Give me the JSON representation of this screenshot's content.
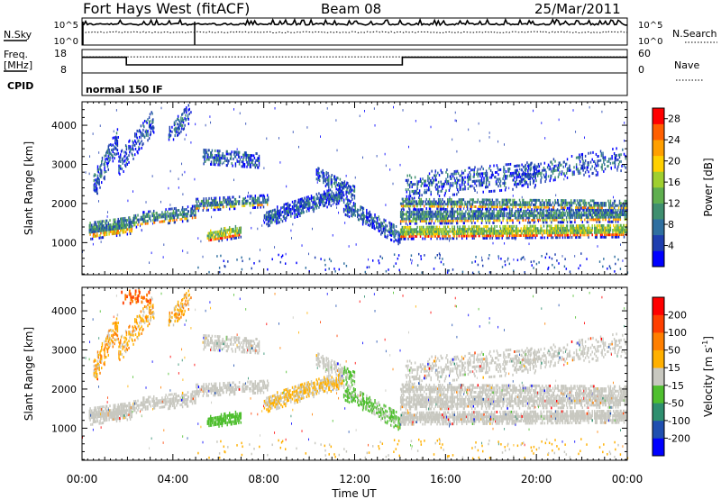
{
  "header": {
    "title": "Fort Hays West (fitACF)",
    "beam": "Beam 08",
    "date": "25/Mar/2011"
  },
  "chart_data": [
    {
      "type": "line",
      "name": "nsky-nsearch-panel",
      "left_label": "N.Sky",
      "right_label": "N.Search",
      "left_ticks": [
        "10^5",
        "10^0"
      ],
      "right_ticks": [
        "10^5",
        "10^0"
      ],
      "x_range_hours": [
        0,
        24
      ],
      "events_hours": [
        0.05,
        5.0
      ],
      "nsky_level": 0.85,
      "nsearch_level": 0.5
    },
    {
      "type": "line",
      "name": "freq-nave-panel",
      "left_label": "Freq.",
      "left_unit": "[MHz]",
      "right_label": "Nave",
      "left_ticks": [
        18,
        8
      ],
      "right_ticks": [
        60,
        0
      ],
      "freq_ylim": [
        8,
        18
      ],
      "x_range_hours": [
        0,
        24
      ],
      "freq_steps": [
        {
          "start": 0.0,
          "end": 1.95,
          "value": 15.0
        },
        {
          "start": 1.95,
          "end": 14.1,
          "value": 11.2
        },
        {
          "start": 14.1,
          "end": 24.0,
          "value": 15.0
        }
      ],
      "nave_level_fraction": 0.72
    },
    {
      "type": "table",
      "name": "cpid-panel",
      "label": "CPID",
      "value": "normal 150 IF"
    },
    {
      "type": "heatmap",
      "name": "power-panel",
      "ylabel": "Slant Range [km]",
      "ylim": [
        180,
        4600
      ],
      "yticks": [
        1000,
        2000,
        3000,
        4000
      ],
      "x_range_hours": [
        0,
        24
      ],
      "colorbar": {
        "label": "Power [dB]",
        "ticks": [
          4,
          8,
          12,
          16,
          20,
          24,
          28
        ],
        "range": [
          0,
          30
        ],
        "colors": [
          "#0000ff",
          "#1f3fb0",
          "#2f6fa0",
          "#3f8f6f",
          "#5faf4f",
          "#9fcf2f",
          "#ffd000",
          "#ff9f00",
          "#ff5f00",
          "#ff0000"
        ]
      }
    },
    {
      "type": "heatmap",
      "name": "velocity-panel",
      "ylabel": "Slant Range [km]",
      "ylim": [
        180,
        4600
      ],
      "yticks": [
        1000,
        2000,
        3000,
        4000
      ],
      "x_range_hours": [
        0,
        24
      ],
      "colorbar": {
        "label": "Velocity",
        "unit_base": "[m s",
        "unit_exp": "-1",
        "unit_close": "]",
        "ticks": [
          200,
          100,
          50,
          15,
          -15,
          -50,
          -100,
          -200
        ],
        "colors": [
          "#0000ff",
          "#1f4fb0",
          "#2f8f6f",
          "#4fbf2f",
          "#c8c8c0",
          "#ffb000",
          "#ff7f00",
          "#ff3f00",
          "#ff0000"
        ]
      }
    }
  ],
  "time_axis": {
    "label": "Time UT",
    "ticks": [
      "00:00",
      "04:00",
      "08:00",
      "12:00",
      "16:00",
      "20:00",
      "00:00"
    ]
  }
}
